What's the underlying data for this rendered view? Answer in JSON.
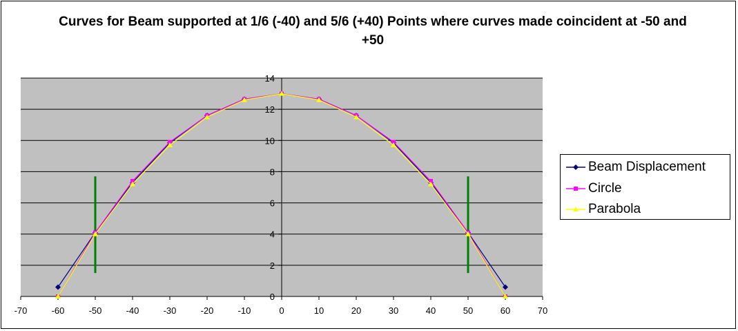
{
  "colors": {
    "plot_background": "#c0c0c0",
    "gridline": "#000000",
    "support_lines": "#008000",
    "beam": "#000080",
    "circle": "#ff00ff",
    "parabola": "#ffff00"
  },
  "chart_data": {
    "type": "scatter",
    "title": "Curves for Beam supported at 1/6 (-40) and 5/6 (+40) Points where curves made coincident at -50 and +50",
    "xlabel": "",
    "ylabel": "",
    "xlim": [
      -70,
      70
    ],
    "ylim": [
      0,
      14
    ],
    "x_ticks": [
      -70,
      -60,
      -50,
      -40,
      -30,
      -20,
      -10,
      0,
      10,
      20,
      30,
      40,
      50,
      60,
      70
    ],
    "y_ticks": [
      0,
      2,
      4,
      6,
      8,
      10,
      12,
      14
    ],
    "grid": "horizontal major gridlines",
    "legend_position": "right",
    "series": [
      {
        "name": "Beam Displacement",
        "marker": "diamond",
        "x": [
          -60,
          -50,
          -40,
          -30,
          -20,
          -10,
          0,
          10,
          20,
          30,
          40,
          50,
          60
        ],
        "y": [
          0.6,
          4.1,
          7.3,
          9.85,
          11.6,
          12.65,
          13.0,
          12.65,
          11.6,
          9.85,
          7.3,
          4.1,
          0.6
        ]
      },
      {
        "name": "Circle",
        "marker": "square",
        "x": [
          -60,
          -50,
          -40,
          -30,
          -20,
          -10,
          0,
          10,
          20,
          30,
          40,
          50,
          60
        ],
        "y": [
          0.0,
          4.1,
          7.4,
          9.9,
          11.6,
          12.65,
          13.0,
          12.65,
          11.6,
          9.9,
          7.4,
          4.1,
          0.0
        ]
      },
      {
        "name": "Parabola",
        "marker": "triangle",
        "x": [
          -60,
          -50,
          -40,
          -30,
          -20,
          -10,
          0,
          10,
          20,
          30,
          40,
          50,
          60
        ],
        "y": [
          0.0,
          4.0,
          7.2,
          9.7,
          11.5,
          12.6,
          13.0,
          12.6,
          11.5,
          9.7,
          7.2,
          4.0,
          0.0
        ]
      }
    ],
    "vertical_lines": [
      {
        "x": -50,
        "y_from": 1.5,
        "y_to": 7.7
      },
      {
        "x": 50,
        "y_from": 1.5,
        "y_to": 7.7
      }
    ]
  }
}
